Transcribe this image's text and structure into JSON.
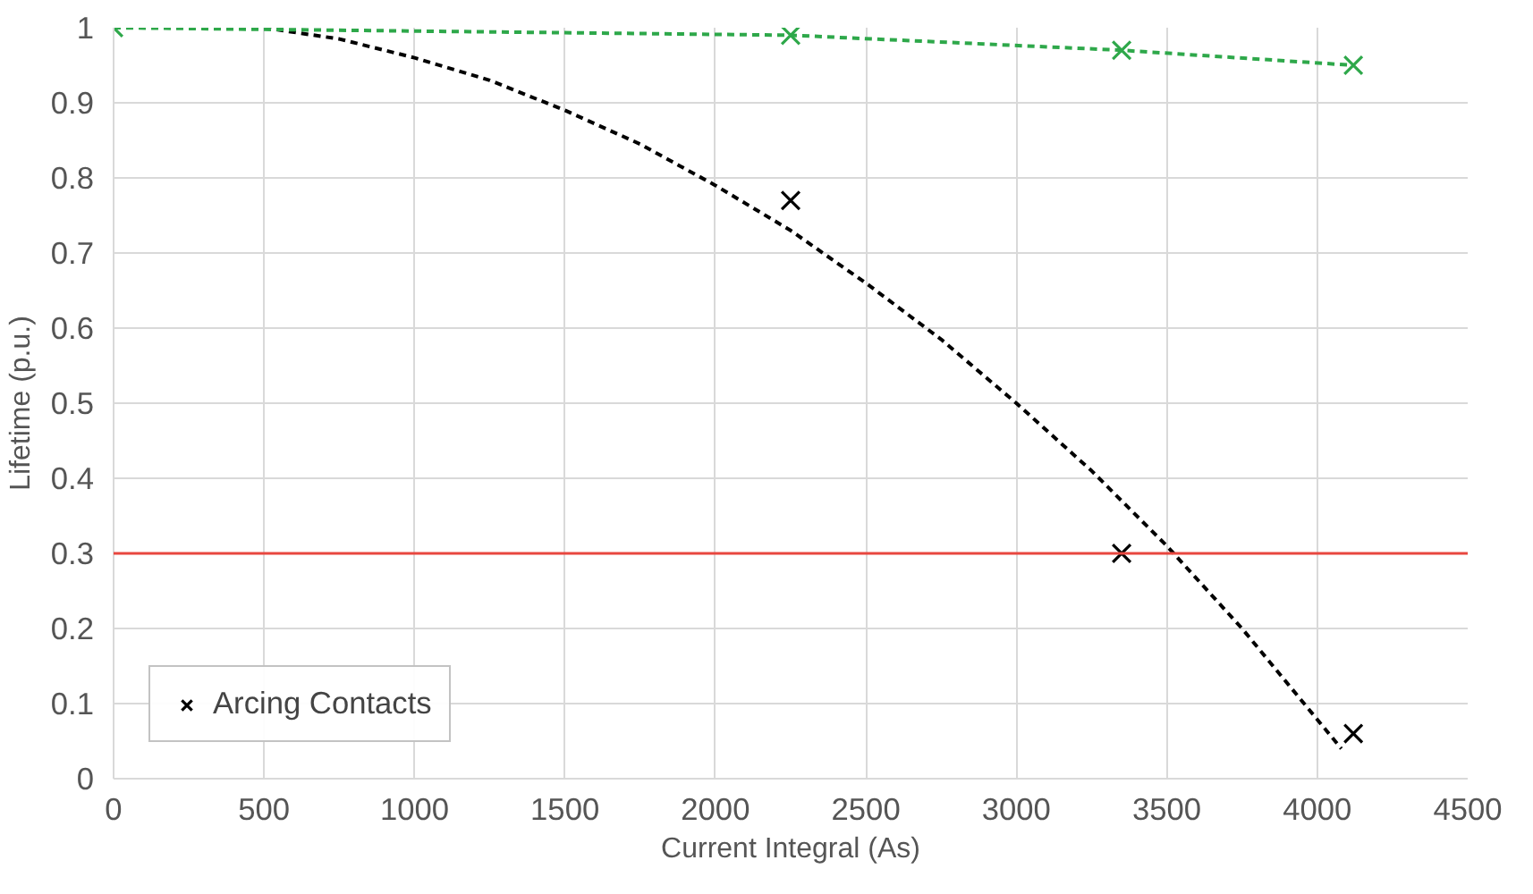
{
  "chart_data": {
    "type": "scatter",
    "xlabel": "Current Integral (As)",
    "ylabel": "Lifetime (p.u.)",
    "xlim": [
      0,
      4500
    ],
    "xticks": [
      0,
      500,
      1000,
      1500,
      2000,
      2500,
      3000,
      3500,
      4000,
      4500
    ],
    "ylim": [
      0,
      1
    ],
    "yticks": [
      0,
      0.1,
      0.2,
      0.3,
      0.4,
      0.5,
      0.6,
      0.7,
      0.8,
      0.9,
      1
    ],
    "grid": true,
    "legend": "bottom left",
    "ref_lines": [
      {
        "axis": "y",
        "value": 0.3,
        "color": "#e8473f"
      }
    ],
    "series": [
      {
        "name": "Arcing Contacts",
        "marker": "cross",
        "color": "#000000",
        "x": [
          2250,
          3350,
          4120
        ],
        "values": [
          0.77,
          0.3,
          0.06
        ]
      },
      {
        "type": "line",
        "line_style": "dashed",
        "marker": "none",
        "color": "#000000",
        "x": [
          500,
          750,
          1000,
          1250,
          1500,
          1750,
          2000,
          2250,
          2500,
          2750,
          3000,
          3250,
          3500,
          3750,
          4080
        ],
        "values": [
          1.0,
          0.985,
          0.96,
          0.93,
          0.89,
          0.845,
          0.79,
          0.73,
          0.66,
          0.585,
          0.5,
          0.41,
          0.31,
          0.2,
          0.04
        ]
      },
      {
        "type": "line",
        "line_style": "dashed",
        "marker": "cross",
        "color": "#2ea84a",
        "x": [
          0,
          2250,
          3350,
          4120
        ],
        "values": [
          1.0,
          0.99,
          0.97,
          0.95
        ]
      }
    ]
  }
}
